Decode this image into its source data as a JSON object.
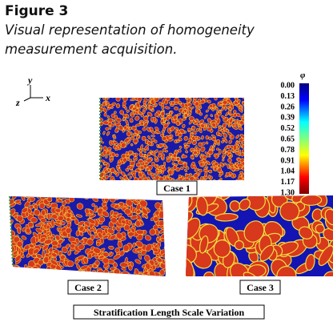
{
  "figure": {
    "label": "Figure 3",
    "caption": "Visual representation of homogeneity measurement acquisition."
  },
  "axes": {
    "y": "y",
    "z": "z",
    "x": "x"
  },
  "colorbar": {
    "symbol": "φ",
    "ticks": [
      "0.00",
      "0.13",
      "0.26",
      "0.39",
      "0.52",
      "0.65",
      "0.78",
      "0.91",
      "1.04",
      "1.17",
      "1.30"
    ]
  },
  "panels": [
    {
      "label": "Case 1"
    },
    {
      "label": "Case 2"
    },
    {
      "label": "Case 3"
    }
  ],
  "footer": "Stratification Length Scale Variation"
}
